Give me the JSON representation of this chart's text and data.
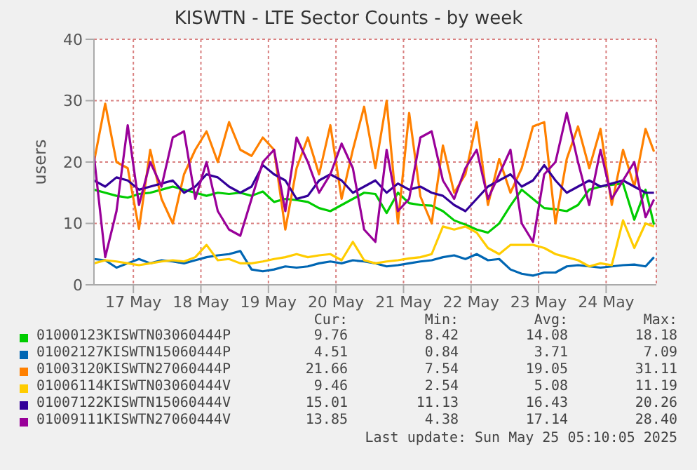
{
  "chart_data": {
    "type": "line",
    "title": "KISWTN - LTE Sector Counts - by week",
    "ylabel": "users",
    "x": [
      "2025-05-16T22:00",
      "2025-05-17T02:00",
      "2025-05-17T06:00",
      "2025-05-17T10:00",
      "2025-05-17T14:00",
      "2025-05-17T18:00",
      "2025-05-17T22:00",
      "2025-05-18T02:00",
      "2025-05-18T06:00",
      "2025-05-18T10:00",
      "2025-05-18T14:00",
      "2025-05-18T18:00",
      "2025-05-18T22:00",
      "2025-05-19T02:00",
      "2025-05-19T06:00",
      "2025-05-19T10:00",
      "2025-05-19T14:00",
      "2025-05-19T18:00",
      "2025-05-19T22:00",
      "2025-05-20T02:00",
      "2025-05-20T06:00",
      "2025-05-20T10:00",
      "2025-05-20T14:00",
      "2025-05-20T18:00",
      "2025-05-20T22:00",
      "2025-05-21T02:00",
      "2025-05-21T06:00",
      "2025-05-21T10:00",
      "2025-05-21T14:00",
      "2025-05-21T18:00",
      "2025-05-21T22:00",
      "2025-05-22T02:00",
      "2025-05-22T06:00",
      "2025-05-22T10:00",
      "2025-05-22T14:00",
      "2025-05-22T18:00",
      "2025-05-22T22:00",
      "2025-05-23T02:00",
      "2025-05-23T06:00",
      "2025-05-23T10:00",
      "2025-05-23T14:00",
      "2025-05-23T18:00",
      "2025-05-23T22:00",
      "2025-05-24T02:00",
      "2025-05-24T06:00",
      "2025-05-24T10:00",
      "2025-05-24T14:00",
      "2025-05-24T18:00",
      "2025-05-24T22:00",
      "2025-05-25T02:00",
      "2025-05-25T05:00"
    ],
    "series": [
      {
        "name": "01000123KISWTN03060444P",
        "color": "#00cc00",
        "values": [
          15.5,
          15,
          14.5,
          14.2,
          14.8,
          15,
          15.5,
          16,
          15.5,
          15,
          14.5,
          15,
          14.8,
          15,
          14.5,
          15.2,
          13.5,
          14,
          13.8,
          13.5,
          12.5,
          12,
          13,
          14,
          15,
          14.8,
          11.7,
          15,
          13.3,
          13,
          12.9,
          12,
          10.5,
          9.8,
          9,
          8.5,
          10,
          12.9,
          15.5,
          14,
          12.5,
          12.3,
          12,
          13,
          15.5,
          16,
          16.3,
          16.5,
          10.6,
          15.5,
          9.8
        ]
      },
      {
        "name": "01002127KISWTN15060444P",
        "color": "#0066b3",
        "values": [
          4.2,
          4,
          2.8,
          3.5,
          4.2,
          3.5,
          4,
          3.8,
          3.5,
          4,
          4.5,
          4.8,
          5,
          5.5,
          2.5,
          2.2,
          2.5,
          3,
          2.8,
          3,
          3.5,
          3.8,
          3.5,
          4,
          3.8,
          3.5,
          3,
          3.2,
          3.5,
          3.8,
          4,
          4.5,
          4.8,
          4.2,
          5,
          4,
          4.2,
          2.5,
          1.8,
          1.5,
          2,
          2,
          3,
          3.2,
          3,
          2.8,
          3,
          3.2,
          3.3,
          3,
          4.5
        ]
      },
      {
        "name": "01003120KISWTN27060444P",
        "color": "#ff8000",
        "values": [
          20,
          29.5,
          20,
          19,
          9.1,
          22,
          14,
          10,
          18,
          22,
          25,
          20,
          26.5,
          22,
          21,
          24,
          22,
          9,
          19,
          24,
          18,
          26,
          14,
          22,
          29,
          19,
          30,
          10,
          28,
          14.4,
          10,
          22.7,
          15,
          18,
          26.5,
          13,
          20.5,
          15,
          19,
          25.8,
          26.5,
          10,
          20.5,
          25.8,
          19,
          25.4,
          13,
          22,
          16,
          25.4,
          21.7
        ]
      },
      {
        "name": "01006114KISWTN03060444V",
        "color": "#ffcc00",
        "values": [
          3.5,
          4,
          3.8,
          3.5,
          3.2,
          3.5,
          3.8,
          4,
          3.8,
          4.5,
          6.5,
          4,
          4.2,
          3.5,
          3.5,
          3.8,
          4.2,
          4.5,
          5,
          4.5,
          4.8,
          5,
          4,
          7,
          4,
          3.5,
          3.8,
          4,
          4.3,
          4.5,
          5,
          9.5,
          9,
          9.5,
          8.5,
          6,
          5,
          6.5,
          6.5,
          6.5,
          6,
          5,
          4.5,
          4,
          3,
          3.5,
          3.2,
          10.5,
          6,
          10,
          9.5
        ]
      },
      {
        "name": "01007122KISWTN15060444V",
        "color": "#330099",
        "values": [
          17,
          16,
          17.5,
          17,
          15.5,
          16,
          16.5,
          17,
          15,
          16,
          18,
          17.5,
          16,
          15,
          16,
          19.5,
          18,
          17,
          14,
          14.5,
          17,
          18,
          17,
          15,
          16,
          17,
          15,
          16.5,
          15.5,
          16,
          15,
          14.5,
          13,
          12,
          14,
          16,
          17,
          18,
          16,
          17,
          19.5,
          17,
          15,
          16,
          17,
          16,
          16.5,
          17,
          16,
          15,
          15
        ]
      },
      {
        "name": "01009111KISWTN27060444V",
        "color": "#990099",
        "values": [
          21,
          4.5,
          12,
          26,
          13,
          20,
          16,
          24,
          25,
          14,
          20,
          12,
          9,
          8,
          14,
          20,
          22,
          12,
          24,
          20,
          15,
          18,
          23,
          19,
          9,
          7,
          22,
          12,
          14,
          24,
          25,
          17,
          14,
          19,
          22,
          14,
          18,
          22,
          10,
          7,
          18,
          20,
          28,
          20,
          13,
          22,
          14,
          17,
          20,
          11,
          13.9
        ]
      }
    ],
    "xlim": [
      "2025-05-16T22:00",
      "2025-05-25T05:50"
    ],
    "xticks": [
      {
        "value": "2025-05-17T12:00",
        "label": "17 May"
      },
      {
        "value": "2025-05-18T12:00",
        "label": "18 May"
      },
      {
        "value": "2025-05-19T12:00",
        "label": "19 May"
      },
      {
        "value": "2025-05-20T12:00",
        "label": "20 May"
      },
      {
        "value": "2025-05-21T12:00",
        "label": "21 May"
      },
      {
        "value": "2025-05-22T12:00",
        "label": "22 May"
      },
      {
        "value": "2025-05-23T12:00",
        "label": "23 May"
      },
      {
        "value": "2025-05-24T12:00",
        "label": "24 May"
      }
    ],
    "ylim": [
      0,
      40
    ],
    "yticks": [
      0,
      10,
      20,
      30,
      40
    ],
    "grid": true,
    "legend": "bottom",
    "annotations": [
      "Cur:",
      "Min:",
      "Avg:",
      "Max:",
      "9.76",
      "8.42",
      "14.08",
      "18.18",
      "4.51",
      "0.84",
      "3.71",
      "7.09",
      "21.66",
      "7.54",
      "19.05",
      "31.11",
      "9.46",
      "2.54",
      "5.08",
      "11.19",
      "15.01",
      "11.13",
      "16.43",
      "20.26",
      "13.85",
      "4.38",
      "17.14",
      "28.40",
      "Last update: Sun May 25 05:10:05 2025"
    ]
  }
}
